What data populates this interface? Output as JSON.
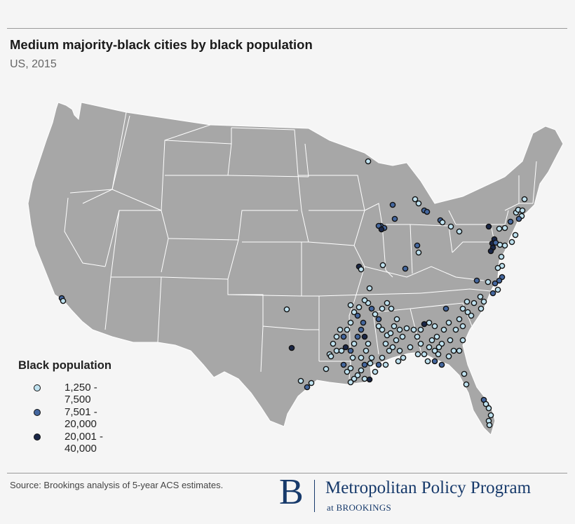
{
  "title": "Medium majority-black cities by black population",
  "subtitle": "US, 2015",
  "legend": {
    "title": "Black population",
    "items": [
      {
        "label": "1,250 - 7,500",
        "color": "#bfe2f0"
      },
      {
        "label": "7,501 - 20,000",
        "color": "#44679f"
      },
      {
        "label": "20,001 - 40,000",
        "color": "#1a2748"
      }
    ]
  },
  "colors": {
    "land": "#a7a7a7",
    "border": "#ffffff",
    "background": "#f5f5f5",
    "brand": "#173a6b"
  },
  "source": "Source: Brookings analysis of 5-year ACS estimates.",
  "logo": {
    "mark": "B",
    "name": "Metropolitan Policy Program",
    "sub": "at BROOKINGS"
  }
}
